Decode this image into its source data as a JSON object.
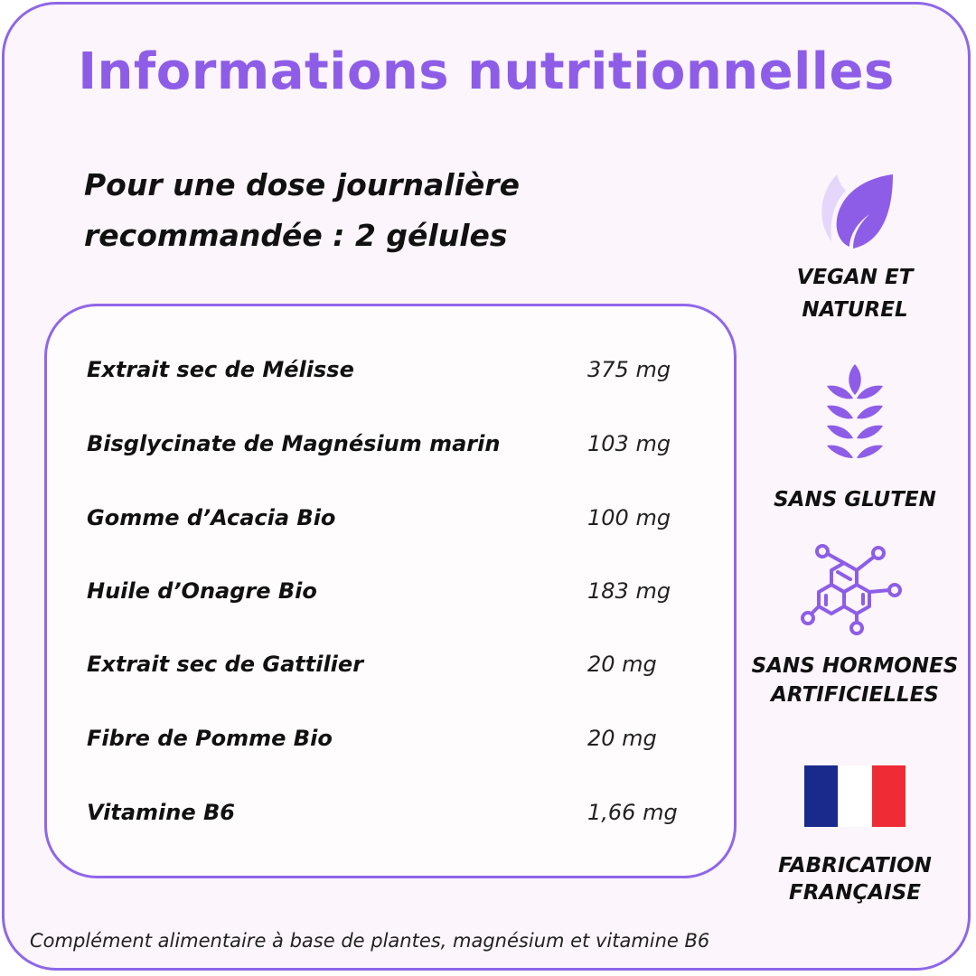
{
  "title": "Informations nutritionnelles",
  "subtitle_line1": "Pour une dose journalière",
  "subtitle_line2": "recommandée : 2 gélules",
  "ingredients": [
    {
      "name": "Extrait sec de Mélisse",
      "value": "375 mg"
    },
    {
      "name": "Bisglycinate de Magnésium marin",
      "value": "103 mg"
    },
    {
      "name": "Gomme d’Acacia Bio",
      "value": "100 mg"
    },
    {
      "name": "Huile d’Onagre Bio",
      "value": "183 mg"
    },
    {
      "name": "Extrait sec de Gattilier",
      "value": "20 mg"
    },
    {
      "name": "Fibre de Pomme Bio",
      "value": "20 mg"
    },
    {
      "name": "Vitamine B6",
      "value": "1,66 mg"
    }
  ],
  "badges": {
    "vegan": {
      "line1": "VEGAN ET",
      "line2": "NATUREL",
      "icon": "leaf-icon"
    },
    "gluten": {
      "line1": "SANS GLUTEN",
      "icon": "wheat-icon"
    },
    "hormones": {
      "line1": "SANS HORMONES",
      "line2": "ARTIFICIELLES",
      "icon": "molecule-icon"
    },
    "france": {
      "line1": "FABRICATION",
      "line2": "FRANÇAISE",
      "icon": "french-flag-icon"
    }
  },
  "footnote": "Complément alimentaire à base de plantes, magnésium et vitamine B6",
  "colors": {
    "accent": "#8e5de8",
    "background": "#fcf5fb",
    "flag_blue": "#1a2a8c",
    "flag_red": "#ef2b35"
  }
}
